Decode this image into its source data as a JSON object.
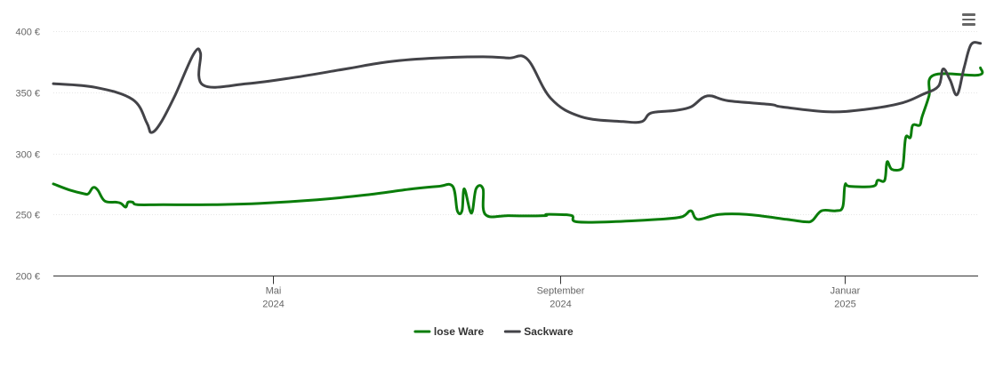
{
  "menu": {
    "icon": "hamburger-menu-icon"
  },
  "chart_data": {
    "type": "line",
    "title": "",
    "xlabel": "",
    "ylabel": "",
    "y_unit": "€",
    "ylim": [
      200,
      400
    ],
    "y_ticks": [
      {
        "value": 200,
        "label": "200 €"
      },
      {
        "value": 250,
        "label": "250 €"
      },
      {
        "value": 300,
        "label": "300 €"
      },
      {
        "value": 350,
        "label": "350 €"
      },
      {
        "value": 400,
        "label": "400 €"
      }
    ],
    "xlim": [
      "2024-01-28",
      "2025-02-27"
    ],
    "x_ticks": [
      {
        "date": "2024-05-01",
        "line1": "Mai",
        "line2": "2024"
      },
      {
        "date": "2024-09-01",
        "line1": "September",
        "line2": "2024"
      },
      {
        "date": "2025-01-01",
        "line1": "Januar",
        "line2": "2025"
      }
    ],
    "grid": true,
    "legend_position": "bottom-center",
    "series": [
      {
        "name": "lose Ware",
        "color": "#0a7d0a",
        "points": [
          [
            "2024-01-28",
            275
          ],
          [
            "2024-02-04",
            270
          ],
          [
            "2024-02-10",
            267
          ],
          [
            "2024-02-12",
            267
          ],
          [
            "2024-02-14",
            272
          ],
          [
            "2024-02-16",
            270
          ],
          [
            "2024-02-19",
            261
          ],
          [
            "2024-02-24",
            260
          ],
          [
            "2024-02-26",
            259
          ],
          [
            "2024-02-28",
            256
          ],
          [
            "2024-02-29",
            260
          ],
          [
            "2024-03-02",
            260
          ],
          [
            "2024-03-04",
            258
          ],
          [
            "2024-03-15",
            258
          ],
          [
            "2024-04-05",
            258
          ],
          [
            "2024-04-25",
            259
          ],
          [
            "2024-05-20",
            262
          ],
          [
            "2024-06-10",
            266
          ],
          [
            "2024-06-30",
            271
          ],
          [
            "2024-07-11",
            273
          ],
          [
            "2024-07-17",
            273
          ],
          [
            "2024-07-19",
            253
          ],
          [
            "2024-07-21",
            253
          ],
          [
            "2024-07-22",
            271
          ],
          [
            "2024-07-25",
            251
          ],
          [
            "2024-07-27",
            271
          ],
          [
            "2024-07-30",
            271
          ],
          [
            "2024-07-31",
            250
          ],
          [
            "2024-08-10",
            249
          ],
          [
            "2024-08-25",
            249
          ],
          [
            "2024-08-26",
            250
          ],
          [
            "2024-08-30",
            250
          ],
          [
            "2024-09-06",
            249
          ],
          [
            "2024-09-08",
            244
          ],
          [
            "2024-09-23",
            244
          ],
          [
            "2024-10-13",
            246
          ],
          [
            "2024-10-23",
            248
          ],
          [
            "2024-10-27",
            253
          ],
          [
            "2024-10-30",
            246
          ],
          [
            "2024-11-08",
            250
          ],
          [
            "2024-11-20",
            250
          ],
          [
            "2024-12-07",
            246
          ],
          [
            "2024-12-15",
            244
          ],
          [
            "2024-12-18",
            245
          ],
          [
            "2024-12-22",
            253
          ],
          [
            "2024-12-28",
            253
          ],
          [
            "2024-12-31",
            256
          ],
          [
            "2025-01-01",
            274
          ],
          [
            "2025-01-03",
            273
          ],
          [
            "2025-01-13",
            273
          ],
          [
            "2025-01-15",
            278
          ],
          [
            "2025-01-18",
            278
          ],
          [
            "2025-01-19",
            293
          ],
          [
            "2025-01-21",
            287
          ],
          [
            "2025-01-25",
            287
          ],
          [
            "2025-01-26",
            293
          ],
          [
            "2025-01-27",
            313
          ],
          [
            "2025-01-29",
            313
          ],
          [
            "2025-01-30",
            323
          ],
          [
            "2025-02-02",
            323
          ],
          [
            "2025-02-03",
            330
          ],
          [
            "2025-02-06",
            347
          ],
          [
            "2025-02-08",
            364
          ],
          [
            "2025-02-27",
            364
          ],
          [
            "2025-02-28",
            370
          ]
        ]
      },
      {
        "name": "Sackware",
        "color": "#434348",
        "points": [
          [
            "2024-01-28",
            357
          ],
          [
            "2024-02-15",
            354
          ],
          [
            "2024-03-02",
            344
          ],
          [
            "2024-03-08",
            325
          ],
          [
            "2024-03-10",
            317
          ],
          [
            "2024-03-14",
            325
          ],
          [
            "2024-03-20",
            347
          ],
          [
            "2024-03-28",
            381
          ],
          [
            "2024-03-31",
            382
          ],
          [
            "2024-04-01",
            356
          ],
          [
            "2024-04-20",
            357
          ],
          [
            "2024-05-10",
            362
          ],
          [
            "2024-06-01",
            369
          ],
          [
            "2024-06-20",
            375
          ],
          [
            "2024-07-10",
            378
          ],
          [
            "2024-07-30",
            379
          ],
          [
            "2024-08-10",
            378
          ],
          [
            "2024-08-18",
            377
          ],
          [
            "2024-08-28",
            345
          ],
          [
            "2024-09-10",
            330
          ],
          [
            "2024-09-28",
            326
          ],
          [
            "2024-10-06",
            326
          ],
          [
            "2024-10-10",
            333
          ],
          [
            "2024-10-20",
            335
          ],
          [
            "2024-10-27",
            338
          ],
          [
            "2024-11-03",
            347
          ],
          [
            "2024-11-12",
            343
          ],
          [
            "2024-11-30",
            340
          ],
          [
            "2024-12-05",
            338
          ],
          [
            "2024-12-25",
            334
          ],
          [
            "2025-01-10",
            336
          ],
          [
            "2025-01-25",
            341
          ],
          [
            "2025-02-03",
            348
          ],
          [
            "2025-02-10",
            355
          ],
          [
            "2025-02-12",
            369
          ],
          [
            "2025-02-15",
            360
          ],
          [
            "2025-02-18",
            348
          ],
          [
            "2025-02-21",
            370
          ],
          [
            "2025-02-24",
            389
          ],
          [
            "2025-02-28",
            390
          ]
        ]
      }
    ]
  }
}
